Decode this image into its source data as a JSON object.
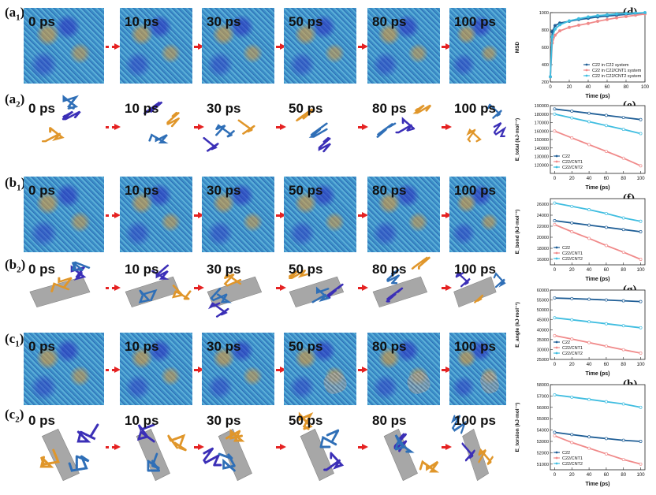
{
  "rows": [
    {
      "key": "a1",
      "letter": "a",
      "sub": "1",
      "kind": "box"
    },
    {
      "key": "a2",
      "letter": "a",
      "sub": "2",
      "kind": "chain"
    },
    {
      "key": "b1",
      "letter": "b",
      "sub": "1",
      "kind": "box"
    },
    {
      "key": "b2",
      "letter": "b",
      "sub": "2",
      "kind": "tube"
    },
    {
      "key": "c1",
      "letter": "c",
      "sub": "1",
      "kind": "boxcnt"
    },
    {
      "key": "c2",
      "letter": "c",
      "sub": "2",
      "kind": "tube2"
    }
  ],
  "time_labels": [
    "0 ps",
    "10 ps",
    "30 ps",
    "50 ps",
    "80 ps",
    "100 ps"
  ],
  "colors": {
    "blue_atoms": "#2f6fb7",
    "orange_atoms": "#e0962a",
    "violet_atoms": "#3b2fb7",
    "cnt": "#8a8a8a",
    "arrow": "#e52222",
    "c22": "#1f5e96",
    "cnt1": "#f08a8a",
    "cnt2": "#3fbde0"
  },
  "chart_data": [
    {
      "panel": "(d)",
      "type": "line",
      "ylabel": "MSD",
      "xlabel": "Time (ps)",
      "xlim": [
        0,
        100
      ],
      "ylim": [
        200,
        1000
      ],
      "xticks": [
        0,
        20,
        40,
        60,
        80,
        100
      ],
      "yticks": [
        200,
        400,
        600,
        800,
        1000
      ],
      "legend_position": "bottom-right",
      "series": [
        {
          "name": "C22 in C22 system",
          "color": "#1f5e96",
          "x": [
            0,
            2,
            5,
            10,
            20,
            30,
            40,
            50,
            60,
            70,
            80,
            90,
            100
          ],
          "values": [
            260,
            780,
            850,
            880,
            900,
            920,
            935,
            950,
            960,
            970,
            980,
            990,
            995
          ]
        },
        {
          "name": "C22 in C22/CNT1 system",
          "color": "#f08a8a",
          "x": [
            0,
            2,
            5,
            10,
            20,
            30,
            40,
            50,
            60,
            70,
            80,
            90,
            100
          ],
          "values": [
            260,
            650,
            740,
            790,
            830,
            855,
            875,
            900,
            920,
            940,
            955,
            970,
            985
          ]
        },
        {
          "name": "C22 in C22/CNT2 system",
          "color": "#3fbde0",
          "x": [
            0,
            2,
            5,
            10,
            20,
            30,
            40,
            50,
            60,
            70,
            80,
            90,
            100
          ],
          "values": [
            260,
            720,
            810,
            860,
            905,
            930,
            950,
            965,
            975,
            985,
            990,
            995,
            1000
          ]
        }
      ]
    },
    {
      "panel": "(e)",
      "type": "scatter",
      "ylabel": "E_total (kJ·mol⁻¹)",
      "xlabel": "Time (ps)",
      "xlim": [
        -5,
        105
      ],
      "ylim": [
        110000,
        190000
      ],
      "xticks": [
        0,
        20,
        40,
        60,
        80,
        100
      ],
      "yticks": [
        120000,
        130000,
        140000,
        150000,
        160000,
        170000,
        180000,
        190000
      ],
      "legend_position": "bottom-left",
      "series": [
        {
          "name": "C22",
          "color": "#1f5e96",
          "x": [
            0,
            20,
            40,
            60,
            80,
            100
          ],
          "values": [
            186000,
            183500,
            181000,
            178500,
            176000,
            173500
          ]
        },
        {
          "name": "C22/CNT1",
          "color": "#f08a8a",
          "x": [
            0,
            20,
            40,
            60,
            80,
            100
          ],
          "values": [
            160000,
            152000,
            144000,
            136000,
            128000,
            119000
          ]
        },
        {
          "name": "C22/CNT2",
          "color": "#3fbde0",
          "x": [
            0,
            20,
            40,
            60,
            80,
            100
          ],
          "values": [
            180000,
            175500,
            171000,
            166500,
            162000,
            157000
          ]
        }
      ]
    },
    {
      "panel": "(f)",
      "type": "scatter",
      "ylabel": "E_bond (kJ·mol⁻¹)",
      "xlabel": "Time (ps)",
      "xlim": [
        -5,
        105
      ],
      "ylim": [
        15000,
        27000
      ],
      "xticks": [
        0,
        20,
        40,
        60,
        80,
        100
      ],
      "yticks": [
        16000,
        18000,
        20000,
        22000,
        24000,
        26000
      ],
      "legend_position": "bottom-left",
      "series": [
        {
          "name": "C22",
          "color": "#1f5e96",
          "x": [
            0,
            20,
            40,
            60,
            80,
            100
          ],
          "values": [
            23000,
            22600,
            22200,
            21800,
            21400,
            21000
          ]
        },
        {
          "name": "C22/CNT1",
          "color": "#f08a8a",
          "x": [
            0,
            20,
            40,
            60,
            80,
            100
          ],
          "values": [
            22300,
            21000,
            19800,
            18500,
            17300,
            16000
          ]
        },
        {
          "name": "C22/CNT2",
          "color": "#3fbde0",
          "x": [
            0,
            20,
            40,
            60,
            80,
            100
          ],
          "values": [
            26200,
            25600,
            25000,
            24300,
            23500,
            22900
          ]
        }
      ]
    },
    {
      "panel": "(g)",
      "type": "scatter",
      "ylabel": "E_angle (kJ·mol⁻¹)",
      "xlabel": "Time (ps)",
      "xlim": [
        -5,
        105
      ],
      "ylim": [
        25000,
        60000
      ],
      "xticks": [
        0,
        20,
        40,
        60,
        80,
        100
      ],
      "yticks": [
        25000,
        30000,
        35000,
        40000,
        45000,
        50000,
        55000,
        60000
      ],
      "legend_position": "bottom-left",
      "series": [
        {
          "name": "C22",
          "color": "#1f5e96",
          "x": [
            0,
            20,
            40,
            60,
            80,
            100
          ],
          "values": [
            56000,
            55700,
            55400,
            55000,
            54600,
            54200
          ]
        },
        {
          "name": "C22/CNT1",
          "color": "#f08a8a",
          "x": [
            0,
            20,
            40,
            60,
            80,
            100
          ],
          "values": [
            37000,
            35300,
            33500,
            31700,
            29900,
            28200
          ]
        },
        {
          "name": "C22/CNT2",
          "color": "#3fbde0",
          "x": [
            0,
            20,
            40,
            60,
            80,
            100
          ],
          "values": [
            46000,
            45000,
            44000,
            43000,
            42000,
            41000
          ]
        }
      ]
    },
    {
      "panel": "(h)",
      "type": "scatter",
      "ylabel": "E_torsion (kJ·mol⁻¹)",
      "xlabel": "Time (ps)",
      "xlim": [
        -5,
        105
      ],
      "ylim": [
        50500,
        58000
      ],
      "xticks": [
        0,
        20,
        40,
        60,
        80,
        100
      ],
      "yticks": [
        51000,
        52000,
        53000,
        54000,
        55000,
        56000,
        57000,
        58000
      ],
      "legend_position": "bottom-left",
      "series": [
        {
          "name": "C22",
          "color": "#1f5e96",
          "x": [
            0,
            20,
            40,
            60,
            80,
            100
          ],
          "values": [
            53800,
            53600,
            53400,
            53250,
            53100,
            53000
          ]
        },
        {
          "name": "C22/CNT1",
          "color": "#f08a8a",
          "x": [
            0,
            20,
            40,
            60,
            80,
            100
          ],
          "values": [
            53500,
            52900,
            52400,
            51900,
            51400,
            51000
          ]
        },
        {
          "name": "C22/CNT2",
          "color": "#3fbde0",
          "x": [
            0,
            20,
            40,
            60,
            80,
            100
          ],
          "values": [
            57100,
            56900,
            56700,
            56500,
            56300,
            56000
          ]
        }
      ]
    }
  ]
}
